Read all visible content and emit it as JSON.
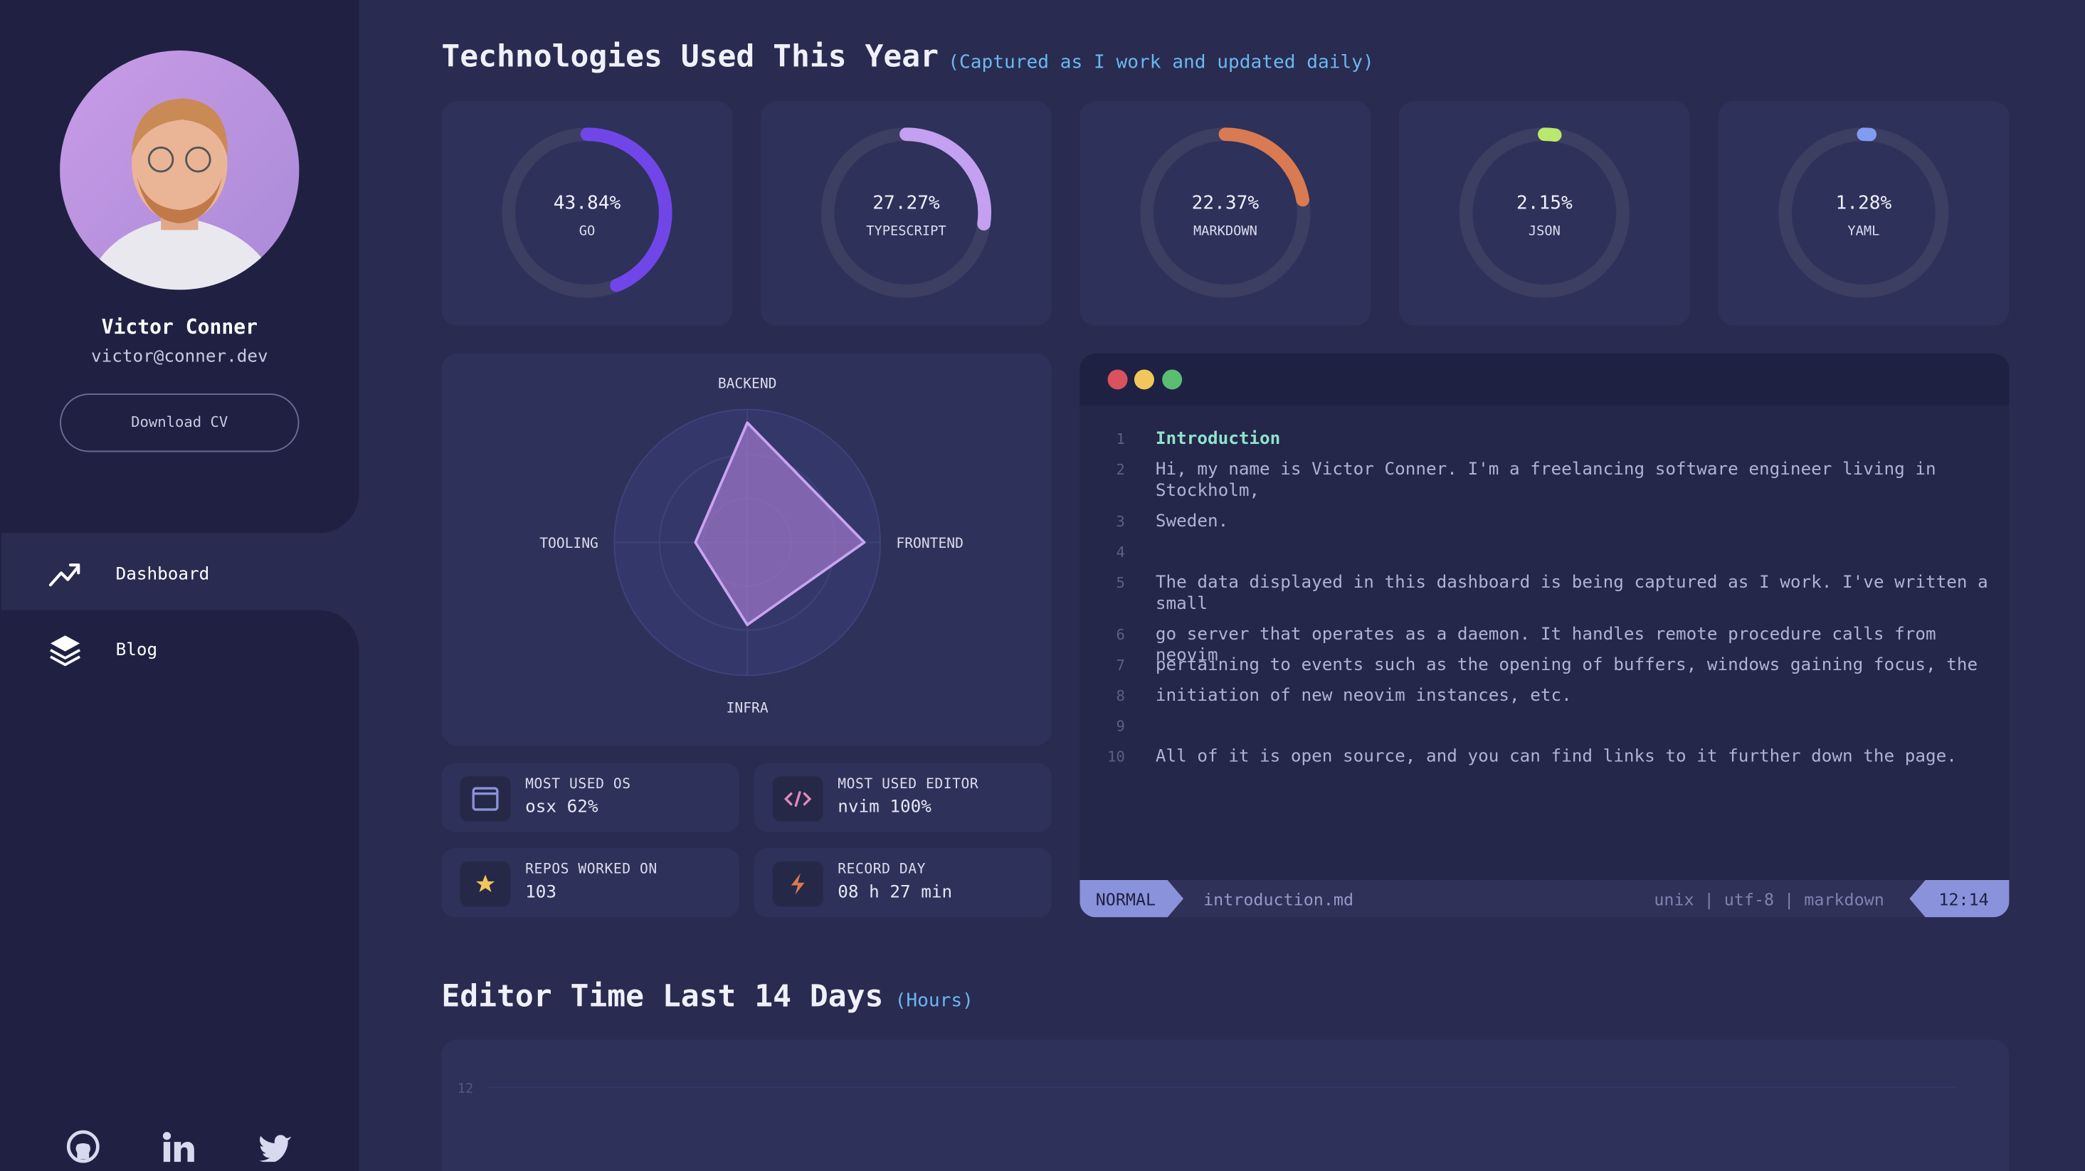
{
  "sidebar": {
    "name": "Victor Conner",
    "email": "victor@conner.dev",
    "button": "Download CV",
    "nav": [
      "Dashboard",
      "Blog"
    ]
  },
  "technologies": {
    "title": "Technologies Used This Year",
    "subtitle": "(Captured as I work and updated daily)",
    "items": [
      {
        "name": "GO",
        "value": 43.84,
        "label": "43.84%",
        "color": "#7046e8"
      },
      {
        "name": "TYPESCRIPT",
        "value": 27.27,
        "label": "27.27%",
        "color": "#c3a0f0"
      },
      {
        "name": "MARKDOWN",
        "value": 22.37,
        "label": "22.37%",
        "color": "#d97a52"
      },
      {
        "name": "JSON",
        "value": 2.15,
        "label": "2.15%",
        "color": "#b8e86e"
      },
      {
        "name": "YAML",
        "value": 1.28,
        "label": "1.28%",
        "color": "#7f9cf2"
      }
    ]
  },
  "radar": {
    "axes": [
      "BACKEND",
      "FRONTEND",
      "INFRA",
      "TOOLING"
    ],
    "values": [
      90,
      88,
      62,
      39
    ],
    "max": 100
  },
  "stats": [
    {
      "label": "MOST USED OS",
      "value": "osx 62%"
    },
    {
      "label": "MOST USED EDITOR",
      "value": "nvim 100%"
    },
    {
      "label": "REPOS WORKED ON",
      "value": "103"
    },
    {
      "label": "RECORD DAY",
      "value": "08 h 27 min"
    }
  ],
  "editor": {
    "lines": [
      "Introduction",
      "Hi, my name is Victor Conner. I'm a freelancing software engineer living in Stockholm,",
      "Sweden.",
      "",
      "The data displayed in this dashboard is being captured as I work. I've written a small",
      "go server that operates as a daemon. It handles remote procedure calls from neovim",
      "pertaining to events such as the opening of buffers, windows gaining focus, the",
      "initiation of new neovim instances, etc.",
      "",
      "All of it is open source, and you can find links to it further down the page."
    ],
    "line_numbers": [
      "1",
      "2",
      "3",
      "4",
      "5",
      "6",
      "7",
      "8",
      "9",
      "10"
    ],
    "mode": "NORMAL",
    "file": "introduction.md",
    "info": "unix | utf-8 | markdown",
    "position": "12:14"
  },
  "chart": {
    "title": "Editor Time Last 14 Days",
    "unit": "(Hours)",
    "yticks": [
      12
    ]
  }
}
